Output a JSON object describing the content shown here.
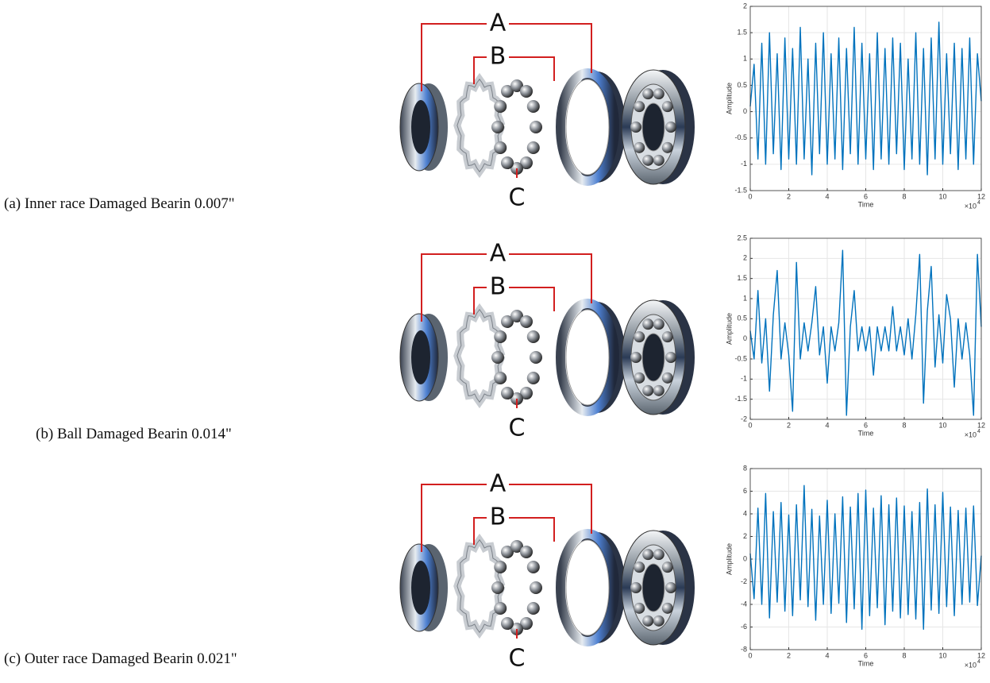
{
  "panels": [
    {
      "caption": "(a) Inner race Damaged Bearin 0.007\"",
      "labels": [
        "A",
        "B",
        "C"
      ]
    },
    {
      "caption": "(b) Ball Damaged Bearin 0.014\"",
      "labels": [
        "A",
        "B",
        "C"
      ]
    },
    {
      "caption": "(c) Outer race Damaged Bearin 0.021\"",
      "labels": [
        "A",
        "B",
        "C"
      ]
    }
  ],
  "chart_data": [
    {
      "type": "line",
      "xlabel": "Time",
      "ylabel": "Amplitude",
      "x_multiplier": {
        "base": "×10",
        "exponent": "4"
      },
      "xlim": [
        0,
        12
      ],
      "xticks": [
        0,
        2,
        4,
        6,
        8,
        10,
        12
      ],
      "ylim": [
        -1.5,
        2
      ],
      "yticks": [
        -1.5,
        -1,
        -0.5,
        0,
        0.5,
        1,
        1.5,
        2
      ],
      "grid": true,
      "x": [
        0,
        0.2,
        0.4,
        0.6,
        0.8,
        1,
        1.2,
        1.4,
        1.6,
        1.8,
        2,
        2.2,
        2.4,
        2.6,
        2.8,
        3,
        3.2,
        3.4,
        3.6,
        3.8,
        4,
        4.2,
        4.4,
        4.6,
        4.8,
        5,
        5.2,
        5.4,
        5.6,
        5.8,
        6,
        6.2,
        6.4,
        6.6,
        6.8,
        7,
        7.2,
        7.4,
        7.6,
        7.8,
        8,
        8.2,
        8.4,
        8.6,
        8.8,
        9,
        9.2,
        9.4,
        9.6,
        9.8,
        10,
        10.2,
        10.4,
        10.6,
        10.8,
        11,
        11.2,
        11.4,
        11.6,
        11.8,
        12
      ],
      "series": [
        {
          "color": "#0072bd",
          "values": [
            0.1,
            0.9,
            -0.9,
            1.3,
            -1.0,
            1.5,
            -0.8,
            1.1,
            -1.1,
            1.4,
            -0.9,
            1.2,
            -1.0,
            1.6,
            -0.9,
            1.0,
            -1.2,
            1.3,
            -0.8,
            1.5,
            -1.0,
            1.1,
            -0.9,
            1.4,
            -1.1,
            1.2,
            -0.8,
            1.6,
            -1.0,
            1.3,
            -0.9,
            1.1,
            -1.1,
            1.5,
            -0.9,
            1.2,
            -1.0,
            1.4,
            -0.8,
            1.3,
            -1.1,
            1.0,
            -0.9,
            1.5,
            -1.0,
            1.2,
            -1.2,
            1.4,
            -0.9,
            1.7,
            -1.0,
            1.1,
            -0.8,
            1.3,
            -1.1,
            1.2,
            -0.9,
            1.4,
            -1.0,
            1.1,
            0.2
          ]
        }
      ]
    },
    {
      "type": "line",
      "xlabel": "Time",
      "ylabel": "Amplitude",
      "x_multiplier": {
        "base": "×10",
        "exponent": "4"
      },
      "xlim": [
        0,
        12
      ],
      "xticks": [
        0,
        2,
        4,
        6,
        8,
        10,
        12
      ],
      "ylim": [
        -2,
        2.5
      ],
      "yticks": [
        -2,
        -1.5,
        -1,
        -0.5,
        0,
        0.5,
        1,
        1.5,
        2,
        2.5
      ],
      "grid": true,
      "x": [
        0,
        0.2,
        0.4,
        0.6,
        0.8,
        1,
        1.2,
        1.4,
        1.6,
        1.8,
        2,
        2.2,
        2.4,
        2.6,
        2.8,
        3,
        3.2,
        3.4,
        3.6,
        3.8,
        4,
        4.2,
        4.4,
        4.6,
        4.8,
        5,
        5.2,
        5.4,
        5.6,
        5.8,
        6,
        6.2,
        6.4,
        6.6,
        6.8,
        7,
        7.2,
        7.4,
        7.6,
        7.8,
        8,
        8.2,
        8.4,
        8.6,
        8.8,
        9,
        9.2,
        9.4,
        9.6,
        9.8,
        10,
        10.2,
        10.4,
        10.6,
        10.8,
        11,
        11.2,
        11.4,
        11.6,
        11.8,
        12
      ],
      "series": [
        {
          "color": "#0072bd",
          "values": [
            0.2,
            -0.5,
            1.2,
            -0.6,
            0.5,
            -1.3,
            0.6,
            1.7,
            -0.5,
            0.4,
            -0.4,
            -1.8,
            1.9,
            -0.5,
            0.4,
            -0.3,
            0.4,
            1.3,
            -0.4,
            0.3,
            -1.1,
            0.3,
            -0.3,
            0.4,
            2.2,
            -1.9,
            0.3,
            1.2,
            -0.3,
            0.3,
            -0.3,
            0.3,
            -0.9,
            0.3,
            -0.3,
            0.3,
            -0.3,
            0.8,
            -0.3,
            0.3,
            -0.4,
            0.5,
            -0.5,
            0.6,
            2.1,
            -1.6,
            0.7,
            1.8,
            -0.7,
            0.6,
            -0.6,
            1.1,
            0.5,
            -1.2,
            0.5,
            -0.5,
            0.4,
            -0.4,
            -1.9,
            2.1,
            0.3
          ]
        }
      ]
    },
    {
      "type": "line",
      "xlabel": "Time",
      "ylabel": "Amplitude",
      "x_multiplier": {
        "base": "×10",
        "exponent": "4"
      },
      "xlim": [
        0,
        12
      ],
      "xticks": [
        0,
        2,
        4,
        6,
        8,
        10,
        12
      ],
      "ylim": [
        -8,
        8
      ],
      "yticks": [
        -8,
        -6,
        -4,
        -2,
        0,
        2,
        4,
        6,
        8
      ],
      "grid": true,
      "x": [
        0,
        0.2,
        0.4,
        0.6,
        0.8,
        1,
        1.2,
        1.4,
        1.6,
        1.8,
        2,
        2.2,
        2.4,
        2.6,
        2.8,
        3,
        3.2,
        3.4,
        3.6,
        3.8,
        4,
        4.2,
        4.4,
        4.6,
        4.8,
        5,
        5.2,
        5.4,
        5.6,
        5.8,
        6,
        6.2,
        6.4,
        6.6,
        6.8,
        7,
        7.2,
        7.4,
        7.6,
        7.8,
        8,
        8.2,
        8.4,
        8.6,
        8.8,
        9,
        9.2,
        9.4,
        9.6,
        9.8,
        10,
        10.2,
        10.4,
        10.6,
        10.8,
        11,
        11.2,
        11.4,
        11.6,
        11.8,
        12
      ],
      "series": [
        {
          "color": "#0072bd",
          "values": [
            0.5,
            -3.5,
            4.5,
            -4.0,
            5.8,
            -5.2,
            4.2,
            -3.8,
            5.0,
            -4.6,
            3.9,
            -5.0,
            4.8,
            -3.6,
            6.5,
            -4.2,
            4.4,
            -5.4,
            3.8,
            -4.0,
            5.2,
            -4.8,
            4.0,
            -3.9,
            5.5,
            -5.6,
            4.6,
            -4.4,
            5.8,
            -6.2,
            6.1,
            -5.0,
            4.5,
            -4.3,
            5.6,
            -5.8,
            4.8,
            -4.6,
            5.4,
            -5.2,
            4.7,
            -4.9,
            4.2,
            -5.3,
            5.0,
            -6.2,
            6.2,
            -4.5,
            4.8,
            -4.8,
            5.9,
            -4.2,
            4.6,
            -5.0,
            4.3,
            -4.0,
            4.5,
            -3.8,
            4.7,
            -4.1,
            0.3
          ]
        }
      ]
    }
  ]
}
